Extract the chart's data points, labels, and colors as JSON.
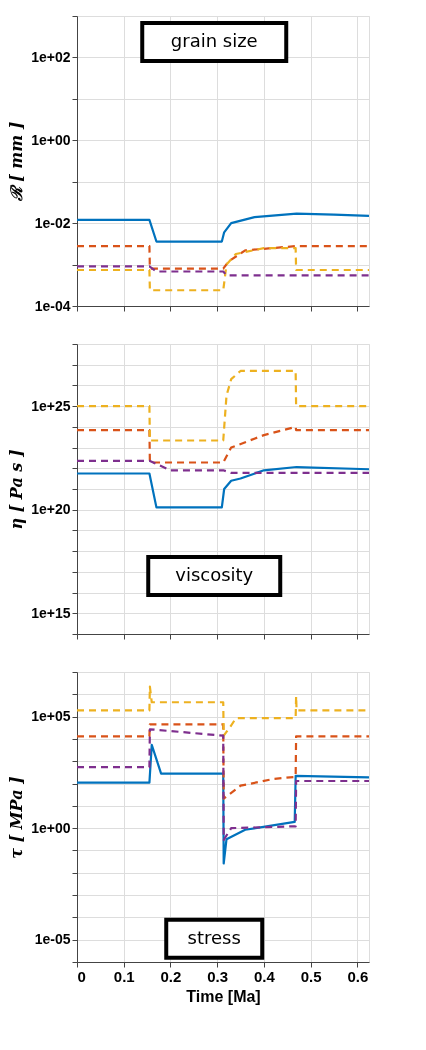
{
  "chart_data": [
    {
      "type": "line",
      "ylabel": "ℛ [ mm ]",
      "annotations": [
        "grain size"
      ],
      "log": true,
      "grid": true,
      "legend": false,
      "tick_labels": "y",
      "xlim": [
        0,
        0.625
      ],
      "xticks": [
        0,
        0.1,
        0.2,
        0.3,
        0.4,
        0.5,
        0.6
      ],
      "ylim": [
        0.0001,
        1000
      ],
      "yticks": [
        {
          "value": 0.0001,
          "label": "1e-04"
        },
        {
          "value": 0.001,
          "label": null
        },
        {
          "value": 0.01,
          "label": "1e-02"
        },
        {
          "value": 0.1,
          "label": null
        },
        {
          "value": 1,
          "label": "1e+00"
        },
        {
          "value": 10,
          "label": null
        },
        {
          "value": 100,
          "label": "1e+02"
        },
        {
          "value": 1000,
          "label": null
        }
      ],
      "series": [
        {
          "color": "#0072bd",
          "line_style": "solid",
          "x": [
            0,
            0.155,
            0.17,
            0.31,
            0.315,
            0.33,
            0.38,
            0.47,
            0.55,
            0.625
          ],
          "values": [
            0.012,
            0.012,
            0.0036,
            0.0036,
            0.006,
            0.01,
            0.014,
            0.017,
            0.016,
            0.015
          ]
        },
        {
          "color": "#d95319",
          "line_style": "dashed",
          "x": [
            0,
            0.155,
            0.156,
            0.313,
            0.325,
            0.36,
            0.47,
            0.625
          ],
          "values": [
            0.0028,
            0.0028,
            0.0008,
            0.0008,
            0.0012,
            0.0022,
            0.0028,
            0.0028
          ]
        },
        {
          "color": "#edb120",
          "line_style": "dashed",
          "x": [
            0,
            0.155,
            0.156,
            0.313,
            0.32,
            0.34,
            0.4,
            0.468,
            0.469,
            0.625
          ],
          "values": [
            0.00074,
            0.00074,
            0.00024,
            0.00024,
            0.001,
            0.0018,
            0.0025,
            0.0025,
            0.00074,
            0.00074
          ]
        },
        {
          "color": "#7e2f8e",
          "line_style": "dashed",
          "x": [
            0,
            0.155,
            0.17,
            0.313,
            0.32,
            0.625
          ],
          "values": [
            0.0009,
            0.0009,
            0.00068,
            0.00068,
            0.00055,
            0.00055
          ]
        }
      ]
    },
    {
      "type": "line",
      "ylabel": "η [ Pa s ]",
      "annotations": [
        "viscosity"
      ],
      "log": true,
      "grid": true,
      "legend": false,
      "tick_labels": "y",
      "xlim": [
        0,
        0.625
      ],
      "xticks": [
        0,
        0.1,
        0.2,
        0.3,
        0.4,
        0.5,
        0.6
      ],
      "ylim": [
        100000000000000.0,
        1e+28
      ],
      "yticks": [
        {
          "value": 100000000000000.0,
          "label": null
        },
        {
          "value": 1000000000000000.0,
          "label": "1e+15"
        },
        {
          "value": 1e+16,
          "label": null
        },
        {
          "value": 1e+17,
          "label": null
        },
        {
          "value": 1e+18,
          "label": null
        },
        {
          "value": 1e+19,
          "label": null
        },
        {
          "value": 1e+20,
          "label": "1e+20"
        },
        {
          "value": 1e+21,
          "label": null
        },
        {
          "value": 1e+22,
          "label": null
        },
        {
          "value": 1e+23,
          "label": null
        },
        {
          "value": 1e+24,
          "label": null
        },
        {
          "value": 1e+25,
          "label": "1e+25"
        },
        {
          "value": 1e+26,
          "label": null
        },
        {
          "value": 1e+27,
          "label": null
        },
        {
          "value": 1e+28,
          "label": null
        }
      ],
      "series": [
        {
          "color": "#0072bd",
          "line_style": "solid",
          "x": [
            0,
            0.155,
            0.17,
            0.31,
            0.315,
            0.33,
            0.35,
            0.4,
            0.47,
            0.625
          ],
          "values": [
            5.6e+21,
            5.6e+21,
            1.3e+20,
            1.3e+20,
            1e+21,
            2.5e+21,
            3.2e+21,
            8e+21,
            1.15e+22,
            9e+21
          ]
        },
        {
          "color": "#d95319",
          "line_style": "dashed",
          "x": [
            0,
            0.155,
            0.156,
            0.313,
            0.33,
            0.4,
            0.468,
            0.469,
            0.625
          ],
          "values": [
            7e+23,
            7e+23,
            1.9e+22,
            1.9e+22,
            1e+23,
            4e+23,
            1e+24,
            7e+23,
            7e+23
          ]
        },
        {
          "color": "#edb120",
          "line_style": "dashed",
          "x": [
            0,
            0.155,
            0.156,
            0.313,
            0.32,
            0.33,
            0.35,
            0.468,
            0.469,
            0.625
          ],
          "values": [
            1e+25,
            1e+25,
            2.2e+23,
            2.2e+23,
            3.2e+25,
            2e+26,
            5e+26,
            5e+26,
            1e+25,
            1e+25
          ]
        },
        {
          "color": "#7e2f8e",
          "line_style": "dashed",
          "x": [
            0,
            0.155,
            0.2,
            0.313,
            0.33,
            0.625
          ],
          "values": [
            2.3e+22,
            2.3e+22,
            8e+21,
            8e+21,
            6e+21,
            6e+21
          ]
        }
      ]
    },
    {
      "type": "line",
      "xlabel": "Time [Ma]",
      "ylabel": "τ [ MPa ]",
      "annotations": [
        "stress"
      ],
      "log": true,
      "grid": true,
      "legend": false,
      "xlim": [
        0,
        0.625
      ],
      "xticks": [
        0,
        0.1,
        0.2,
        0.3,
        0.4,
        0.5,
        0.6
      ],
      "ylim": [
        1e-06,
        10000000.0
      ],
      "yticks": [
        {
          "value": 1e-06,
          "label": null
        },
        {
          "value": 1e-05,
          "label": "1e-05"
        },
        {
          "value": 0.0001,
          "label": null
        },
        {
          "value": 0.001,
          "label": null
        },
        {
          "value": 0.01,
          "label": null
        },
        {
          "value": 0.1,
          "label": null
        },
        {
          "value": 1,
          "label": "1e+00"
        },
        {
          "value": 10,
          "label": null
        },
        {
          "value": 100,
          "label": null
        },
        {
          "value": 1000,
          "label": null
        },
        {
          "value": 10000.0,
          "label": null
        },
        {
          "value": 100000.0,
          "label": "1e+05"
        },
        {
          "value": 1000000.0,
          "label": null
        },
        {
          "value": 10000000.0,
          "label": null
        }
      ],
      "series": [
        {
          "color": "#0072bd",
          "line_style": "solid",
          "x": [
            0,
            0.155,
            0.16,
            0.18,
            0.313,
            0.314,
            0.32,
            0.36,
            0.466,
            0.468,
            0.625
          ],
          "values": [
            110,
            110,
            5400,
            280,
            280,
            0.026,
            0.32,
            0.85,
            1.9,
            220,
            190
          ]
        },
        {
          "color": "#d95319",
          "line_style": "dashed",
          "x": [
            0,
            0.155,
            0.156,
            0.313,
            0.314,
            0.35,
            0.42,
            0.468,
            0.469,
            0.625
          ],
          "values": [
            13000,
            13000,
            45000,
            45000,
            21,
            80,
            160,
            200,
            13000,
            13000
          ]
        },
        {
          "color": "#edb120",
          "line_style": "dashed",
          "x": [
            0,
            0.155,
            0.156,
            0.16,
            0.313,
            0.314,
            0.33,
            0.34,
            0.468,
            0.469,
            0.47,
            0.625
          ],
          "values": [
            190000,
            190000,
            2200000,
            440000,
            440000,
            14000,
            40000,
            85000,
            85000,
            830000,
            190000,
            190000
          ]
        },
        {
          "color": "#7e2f8e",
          "line_style": "dashed",
          "x": [
            0,
            0.155,
            0.156,
            0.313,
            0.314,
            0.33,
            0.46,
            0.468,
            0.469,
            0.625
          ],
          "values": [
            540,
            540,
            27000,
            14000,
            0.3,
            1,
            1.2,
            1.2,
            130,
            130
          ]
        }
      ]
    }
  ]
}
